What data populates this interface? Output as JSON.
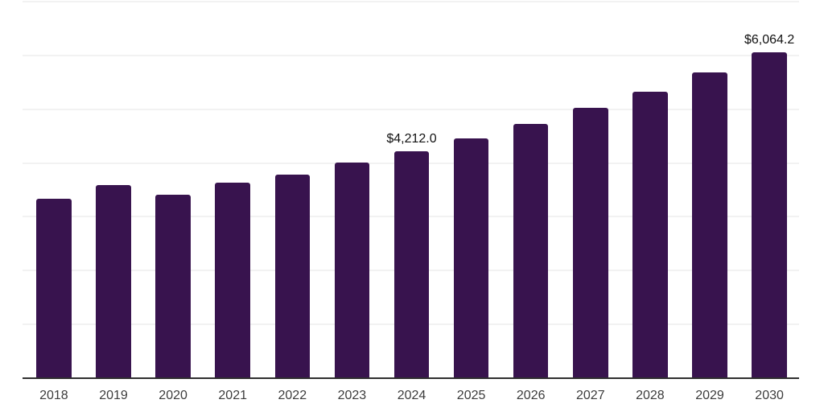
{
  "chart_data": {
    "type": "bar",
    "title": "",
    "xlabel": "",
    "ylabel": "",
    "categories": [
      "2018",
      "2019",
      "2020",
      "2021",
      "2022",
      "2023",
      "2024",
      "2025",
      "2026",
      "2027",
      "2028",
      "2029",
      "2030"
    ],
    "values": [
      3331,
      3585,
      3405,
      3629,
      3779,
      4003,
      4212.0,
      4451,
      4720,
      5033,
      5332,
      5691,
      6064.2
    ],
    "annotations": [
      {
        "category": "2024",
        "text": "$4,212.0"
      },
      {
        "category": "2030",
        "text": "$6,064.2"
      }
    ],
    "ylim": [
      0,
      7000
    ],
    "gridline_interval": 1000,
    "grid": "horizontal",
    "legend": "none",
    "colors": {
      "bar": "#38134e",
      "gridline": "#f2f2f2",
      "axis_line": "#2f2f2f",
      "value_label": "#111111",
      "tick_label": "#3c3c3c",
      "background": "#ffffff"
    }
  }
}
